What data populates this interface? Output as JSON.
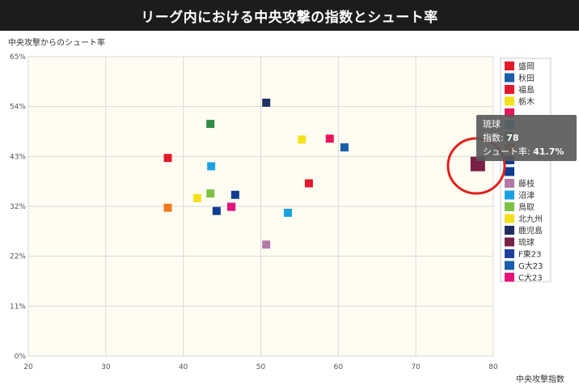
{
  "title": "リーグ内における中央攻撃の指数とシュート率",
  "chart_data": {
    "type": "scatter",
    "ylabel": "中央攻撃からのシュート率",
    "xlabel": "中央攻撃指数",
    "xlim": [
      20,
      80
    ],
    "ylim": [
      0,
      65
    ],
    "xticks": [
      "20",
      "30",
      "40",
      "50",
      "60",
      "70",
      "80"
    ],
    "yticks": [
      "0%",
      "11%",
      "22%",
      "32%",
      "43%",
      "54%",
      "65%"
    ],
    "grid": true,
    "legend_position": "right",
    "series": [
      {
        "name": "盛岡",
        "color": "#e41a2c",
        "points": [
          [
            38,
            43
          ]
        ]
      },
      {
        "name": "秋田",
        "color": "#1a5ea8",
        "points": [
          [
            60.8,
            45.3
          ]
        ]
      },
      {
        "name": "福島",
        "color": "#e41a2c",
        "points": [
          [
            56.2,
            37.5
          ]
        ]
      },
      {
        "name": "栃木",
        "color": "#f4e01b",
        "points": [
          [
            55.3,
            47
          ]
        ]
      },
      {
        "name": "",
        "color": "#e6145c",
        "points": [
          [
            58.9,
            47.2
          ]
        ]
      },
      {
        "name": "",
        "color": "#1ba1e2",
        "points": [
          [
            43.6,
            41.2
          ]
        ]
      },
      {
        "name": "",
        "color": "#2d8b45",
        "points": [
          [
            43.5,
            50.4
          ]
        ]
      },
      {
        "name": "",
        "color": "#f07a1e",
        "points": [
          [
            38,
            32.2
          ]
        ]
      },
      {
        "name": "",
        "color": "#0e3d91",
        "points": [
          [
            46.7,
            35
          ]
        ]
      },
      {
        "name": "",
        "color": "#0e3d91",
        "points": [
          [
            44.3,
            31.5
          ]
        ]
      },
      {
        "name": "藤枝",
        "color": "#b279a8",
        "points": [
          [
            50.7,
            24.2
          ]
        ]
      },
      {
        "name": "沼津",
        "color": "#1ba1e2",
        "points": [
          [
            53.5,
            31.1
          ]
        ]
      },
      {
        "name": "鳥取",
        "color": "#7dc242",
        "points": [
          [
            43.5,
            35.3
          ]
        ]
      },
      {
        "name": "北九州",
        "color": "#f4e01b",
        "points": [
          [
            41.8,
            34.3
          ]
        ]
      },
      {
        "name": "鹿児島",
        "color": "#1f2f5f",
        "points": [
          [
            50.7,
            55
          ]
        ]
      },
      {
        "name": "琉球",
        "color": "#7a1f45",
        "points": [
          [
            78,
            41.7
          ]
        ]
      },
      {
        "name": "F東23",
        "color": "#1f3f9f",
        "points": [
          [
            46.2,
            32.4
          ]
        ]
      },
      {
        "name": "G大23",
        "color": "#1a5ea8",
        "points": [
          [
            46.2,
            32.4
          ]
        ]
      },
      {
        "name": "C大23",
        "color": "#e6147a",
        "points": [
          [
            46.2,
            32.4
          ]
        ]
      }
    ],
    "tooltip": {
      "name": "琉球",
      "index_label": "指数: ",
      "index_value": "78",
      "rate_label": "シュート率: ",
      "rate_value": "41.7%"
    }
  }
}
